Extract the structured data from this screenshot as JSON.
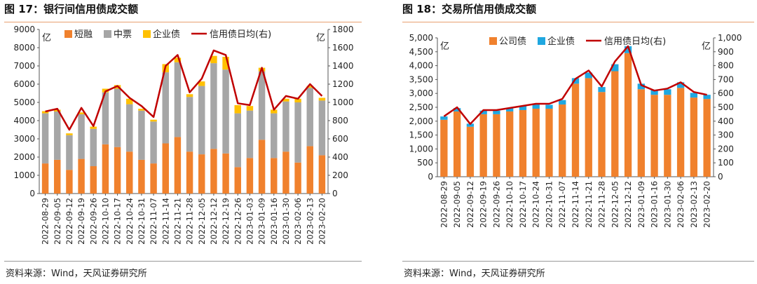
{
  "left": {
    "title": "图 17：银行间信用债成交额",
    "source": "资料来源：Wind，天风证券研究所",
    "chart_data": {
      "type": "bar",
      "stacked": true,
      "categories": [
        "2022-08-29",
        "2022-09-05",
        "2022-09-12",
        "2022-09-19",
        "2022-09-26",
        "2022-10-10",
        "2022-10-17",
        "2022-10-24",
        "2022-10-31",
        "2022-11-07",
        "2022-11-14",
        "2022-11-21",
        "2022-11-28",
        "2022-12-05",
        "2022-12-12",
        "2022-12-19",
        "2022-12-26",
        "2023-01-03",
        "2023-01-09",
        "2023-01-16",
        "2023-01-30",
        "2023-02-06",
        "2023-02-13",
        "2023-02-20"
      ],
      "series": [
        {
          "name": "短融",
          "color": "#f0812d",
          "values": [
            1650,
            1850,
            1300,
            1900,
            1500,
            2700,
            2550,
            2300,
            1850,
            1650,
            2750,
            3100,
            2300,
            2150,
            2450,
            2200,
            1450,
            1950,
            2950,
            1950,
            2300,
            1700,
            2600,
            2100
          ]
        },
        {
          "name": "中票",
          "color": "#a6a6a6",
          "values": [
            2750,
            2650,
            1900,
            2450,
            2050,
            2850,
            3200,
            2600,
            2700,
            2300,
            3900,
            4100,
            3000,
            3750,
            4700,
            4600,
            2950,
            2600,
            3750,
            2450,
            2750,
            3300,
            3200,
            3000
          ]
        },
        {
          "name": "企业债",
          "color": "#ffc000",
          "values": [
            120,
            100,
            100,
            100,
            120,
            200,
            200,
            300,
            100,
            100,
            450,
            250,
            150,
            250,
            400,
            700,
            450,
            250,
            200,
            200,
            150,
            200,
            100,
            150
          ]
        }
      ],
      "line": {
        "name": "信用债日均(右)",
        "color": "#c00000",
        "values": [
          900,
          930,
          700,
          940,
          740,
          1120,
          1180,
          1050,
          960,
          840,
          1400,
          1520,
          1110,
          1260,
          1570,
          1520,
          990,
          970,
          1380,
          920,
          1070,
          1040,
          1200,
          1070
        ]
      },
      "y_left": {
        "label": "亿",
        "min": 0,
        "max": 9000,
        "ticks": [
          0,
          1000,
          2000,
          3000,
          4000,
          5000,
          6000,
          7000,
          8000,
          9000
        ]
      },
      "y_right": {
        "label": "亿",
        "min": 0,
        "max": 1800,
        "ticks": [
          0,
          200,
          400,
          600,
          800,
          1000,
          1200,
          1400,
          1600,
          1800
        ]
      },
      "legend": "top"
    }
  },
  "right": {
    "title": "图 18：交易所信用债成交额",
    "source": "资料来源：Wind，天风证券研究所",
    "chart_data": {
      "type": "bar",
      "stacked": true,
      "categories": [
        "2022-08-29",
        "2022-09-05",
        "2022-09-12",
        "2022-09-19",
        "2022-09-26",
        "2022-10-10",
        "2022-10-17",
        "2022-10-24",
        "2022-10-31",
        "2022-11-07",
        "2022-11-14",
        "2022-11-21",
        "2022-11-28",
        "2022-12-05",
        "2022-12-12",
        "2023-01-09",
        "2023-01-16",
        "2023-01-30",
        "2023-02-06",
        "2023-02-13",
        "2023-02-20"
      ],
      "series": [
        {
          "name": "公司债",
          "color": "#f0812d",
          "values": [
            2050,
            2350,
            1800,
            2250,
            2250,
            2350,
            2400,
            2450,
            2450,
            2600,
            3350,
            3550,
            3050,
            3800,
            4450,
            3150,
            2950,
            2950,
            3200,
            2850,
            2800
          ]
        },
        {
          "name": "企业债",
          "color": "#1fa7e0",
          "values": [
            120,
            120,
            110,
            130,
            130,
            130,
            150,
            150,
            140,
            160,
            200,
            200,
            180,
            250,
            250,
            200,
            180,
            200,
            200,
            170,
            150
          ]
        }
      ],
      "line": {
        "name": "信用债日均(右)",
        "color": "#c00000",
        "values": [
          435,
          500,
          380,
          480,
          480,
          495,
          510,
          525,
          525,
          560,
          705,
          765,
          650,
          830,
          940,
          660,
          620,
          635,
          680,
          610,
          590
        ]
      },
      "y_left": {
        "label": "亿",
        "min": 0,
        "max": 5000,
        "ticks": [
          0,
          500,
          1000,
          1500,
          2000,
          2500,
          3000,
          3500,
          4000,
          4500,
          5000
        ]
      },
      "y_right": {
        "label": "亿",
        "min": 0,
        "max": 1000,
        "ticks": [
          0,
          100,
          200,
          300,
          400,
          500,
          600,
          700,
          800,
          900,
          1000
        ]
      },
      "legend": "top"
    }
  }
}
